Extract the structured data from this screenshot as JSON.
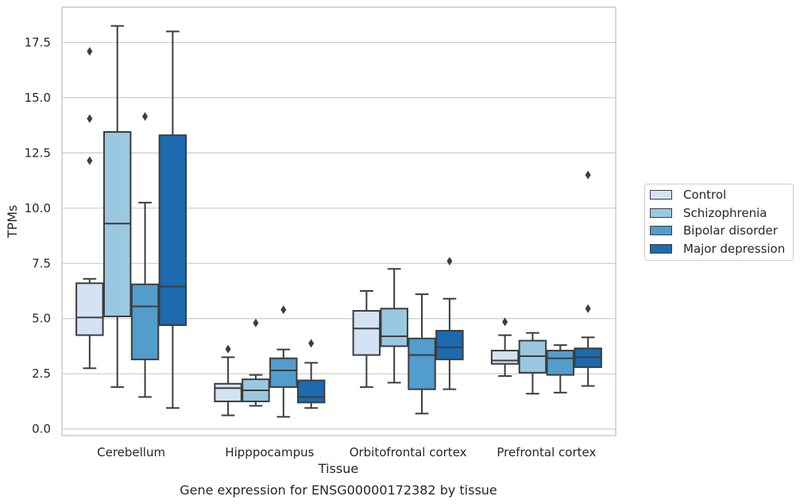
{
  "chart_data": {
    "type": "box",
    "title": "Gene expression for ENSG00000172382 by tissue",
    "xlabel": "Tissue",
    "ylabel": "TPMs",
    "ylim": [
      -0.3,
      19.1
    ],
    "yticks": [
      0.0,
      2.5,
      5.0,
      7.5,
      10.0,
      12.5,
      15.0,
      17.5
    ],
    "ytick_labels": [
      "0.0",
      "2.5",
      "5.0",
      "7.5",
      "10.0",
      "12.5",
      "15.0",
      "17.5"
    ],
    "grid": "horizontal",
    "legend_position": "right",
    "categories": [
      "Cerebellum",
      "Hipppocampus",
      "Orbitofrontal cortex",
      "Prefrontal cortex"
    ],
    "series": [
      {
        "name": "Control",
        "color": "#d3e3f3",
        "boxes": [
          {
            "whislo": 2.75,
            "q1": 4.25,
            "med": 5.05,
            "q3": 6.6,
            "whishi": 6.8,
            "fliers": [
              12.15,
              14.05,
              17.1
            ]
          },
          {
            "whislo": 0.62,
            "q1": 1.25,
            "med": 1.85,
            "q3": 2.05,
            "whishi": 3.25,
            "fliers": [
              3.62
            ]
          },
          {
            "whislo": 1.9,
            "q1": 3.35,
            "med": 4.55,
            "q3": 5.35,
            "whishi": 6.25,
            "fliers": []
          },
          {
            "whislo": 2.4,
            "q1": 2.95,
            "med": 3.1,
            "q3": 3.55,
            "whishi": 4.25,
            "fliers": [
              4.85
            ]
          }
        ]
      },
      {
        "name": "Schizophrenia",
        "color": "#9ac8e0",
        "boxes": [
          {
            "whislo": 1.9,
            "q1": 5.1,
            "med": 9.3,
            "q3": 13.45,
            "whishi": 18.25,
            "fliers": []
          },
          {
            "whislo": 1.05,
            "q1": 1.25,
            "med": 1.75,
            "q3": 2.25,
            "whishi": 2.45,
            "fliers": [
              4.8
            ]
          },
          {
            "whislo": 2.1,
            "q1": 3.75,
            "med": 4.2,
            "q3": 5.45,
            "whishi": 7.25,
            "fliers": []
          },
          {
            "whislo": 1.6,
            "q1": 2.55,
            "med": 3.3,
            "q3": 4.0,
            "whishi": 4.35,
            "fliers": []
          }
        ]
      },
      {
        "name": "Bipolar disorder",
        "color": "#529dcc",
        "boxes": [
          {
            "whislo": 1.45,
            "q1": 3.15,
            "med": 5.55,
            "q3": 6.55,
            "whishi": 10.25,
            "fliers": [
              14.15
            ]
          },
          {
            "whislo": 0.55,
            "q1": 1.9,
            "med": 2.65,
            "q3": 3.2,
            "whishi": 3.6,
            "fliers": [
              5.4
            ]
          },
          {
            "whislo": 0.7,
            "q1": 1.8,
            "med": 3.35,
            "q3": 4.1,
            "whishi": 6.1,
            "fliers": []
          },
          {
            "whislo": 1.65,
            "q1": 2.45,
            "med": 3.2,
            "q3": 3.55,
            "whishi": 3.8,
            "fliers": []
          }
        ]
      },
      {
        "name": "Major depression",
        "color": "#1c6aaf",
        "boxes": [
          {
            "whislo": 0.95,
            "q1": 4.7,
            "med": 6.45,
            "q3": 13.3,
            "whishi": 18.0,
            "fliers": []
          },
          {
            "whislo": 0.95,
            "q1": 1.2,
            "med": 1.45,
            "q3": 2.2,
            "whishi": 3.0,
            "fliers": [
              3.88
            ]
          },
          {
            "whislo": 1.8,
            "q1": 3.15,
            "med": 3.7,
            "q3": 4.45,
            "whishi": 5.9,
            "fliers": [
              7.6
            ]
          },
          {
            "whislo": 1.95,
            "q1": 2.8,
            "med": 3.25,
            "q3": 3.65,
            "whishi": 4.15,
            "fliers": [
              5.45,
              11.5
            ]
          }
        ]
      }
    ]
  }
}
